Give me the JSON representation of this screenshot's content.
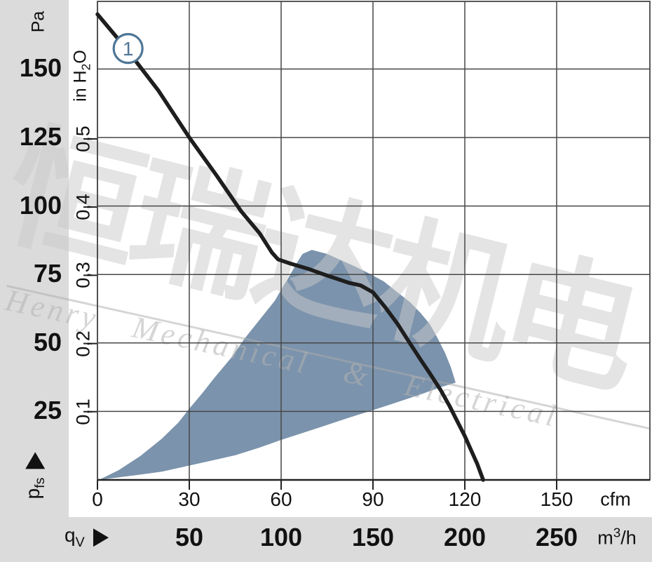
{
  "watermark": {
    "cjk_text": "恒瑞达机电",
    "latin_text": "Henry Mechanical & Electrical"
  },
  "left_axis": {
    "pressure_unit": "Pa",
    "inh2o_prefix": "in H",
    "inh2o_sub": "2",
    "inh2o_suffix": "O",
    "axis_name_main": "p",
    "axis_name_sub": "fs"
  },
  "bottom_axis": {
    "axis_name_main": "q",
    "axis_name_sub": "V",
    "cfm_unit": "cfm",
    "m3h_unit_main": "m",
    "m3h_unit_sup": "3",
    "m3h_unit_suffix": "/h"
  },
  "colors": {
    "region": "#7B93AC",
    "curve": "#1E1E1E",
    "grid": "#474747",
    "axis": "#222222",
    "marker": "#4E7596",
    "sidebar_bg": "#DBDBDB",
    "text": "#111111"
  },
  "chart_data": {
    "type": "line",
    "title": "",
    "xlabel": "qV (air flow)",
    "ylabel": "pfs (static pressure)",
    "x_axis": {
      "unit_primary": "cfm",
      "unit_secondary": "m³/h",
      "cfm_ticks": [
        0,
        30,
        60,
        90,
        120,
        150
      ],
      "m3h_ticks": [
        {
          "label": "50",
          "at_cfm": 30
        },
        {
          "label": "100",
          "at_cfm": 60
        },
        {
          "label": "150",
          "at_cfm": 90
        },
        {
          "label": "200",
          "at_cfm": 120
        },
        {
          "label": "250",
          "at_cfm": 150
        }
      ],
      "range_cfm": [
        0,
        180
      ]
    },
    "y_axis": {
      "unit_primary": "Pa",
      "unit_secondary": "in H2O",
      "pa_ticks": [
        150,
        125,
        100,
        75,
        50,
        25
      ],
      "inh2o_ticks": [
        {
          "label": "0,5",
          "pa": 124.5
        },
        {
          "label": "0,4",
          "pa": 99.6
        },
        {
          "label": "0,3",
          "pa": 74.7
        },
        {
          "label": "0,2",
          "pa": 49.8
        },
        {
          "label": "0,1",
          "pa": 24.9
        }
      ],
      "range_pa": [
        0,
        174.6
      ]
    },
    "curve": {
      "name": "fan-characteristic-curve-1",
      "marker": {
        "label": "1",
        "cfm": 10,
        "pa": 157.5
      },
      "points_cfm_pa": [
        [
          0,
          170
        ],
        [
          9,
          158
        ],
        [
          20,
          142
        ],
        [
          30,
          125
        ],
        [
          39,
          111
        ],
        [
          47,
          98
        ],
        [
          53,
          90
        ],
        [
          57,
          83
        ],
        [
          59,
          80.5
        ],
        [
          63,
          79
        ],
        [
          69,
          77
        ],
        [
          74,
          75
        ],
        [
          82,
          72
        ],
        [
          86,
          71
        ],
        [
          90,
          68.5
        ],
        [
          94,
          63
        ],
        [
          98,
          57
        ],
        [
          102,
          50
        ],
        [
          105.5,
          44
        ],
        [
          108.5,
          39
        ],
        [
          112,
          33
        ],
        [
          115,
          27
        ],
        [
          117.5,
          21.5
        ],
        [
          120,
          16
        ],
        [
          122,
          11
        ],
        [
          124,
          6
        ],
        [
          126,
          0
        ]
      ]
    },
    "operating_region": {
      "name": "recommended-operating-range",
      "upper_boundary_cfm_pa": [
        [
          0.5,
          0
        ],
        [
          7,
          3.6
        ],
        [
          14,
          8.7
        ],
        [
          21,
          15
        ],
        [
          26.5,
          21
        ],
        [
          30,
          26
        ],
        [
          34.5,
          32
        ],
        [
          38,
          37
        ],
        [
          44,
          45
        ],
        [
          48,
          51.5
        ],
        [
          53,
          58.5
        ],
        [
          58,
          65.5
        ],
        [
          60,
          69.5
        ],
        [
          62.5,
          74
        ],
        [
          65,
          79
        ],
        [
          67,
          82.5
        ],
        [
          70,
          84
        ],
        [
          75,
          82.5
        ],
        [
          79,
          80.5
        ],
        [
          84,
          78
        ],
        [
          88.5,
          75.5
        ],
        [
          93.5,
          72.5
        ],
        [
          98,
          68.5
        ],
        [
          102,
          65
        ],
        [
          105.5,
          61
        ],
        [
          108.5,
          57
        ],
        [
          111,
          52
        ],
        [
          113.5,
          46.5
        ],
        [
          115.5,
          41
        ],
        [
          117,
          35.5
        ]
      ],
      "lower_boundary_cfm_pa": [
        [
          0.5,
          0
        ],
        [
          6,
          0.8
        ],
        [
          13,
          1.8
        ],
        [
          21,
          3
        ],
        [
          29,
          5
        ],
        [
          37,
          7
        ],
        [
          45,
          9
        ],
        [
          53,
          11.8
        ],
        [
          60,
          14.6
        ],
        [
          65.5,
          16.6
        ],
        [
          73.5,
          19.5
        ],
        [
          81.5,
          22.5
        ],
        [
          89.5,
          25.3
        ],
        [
          97.5,
          28.2
        ],
        [
          105.5,
          31.2
        ],
        [
          112.5,
          34
        ],
        [
          117,
          35.5
        ]
      ]
    }
  }
}
